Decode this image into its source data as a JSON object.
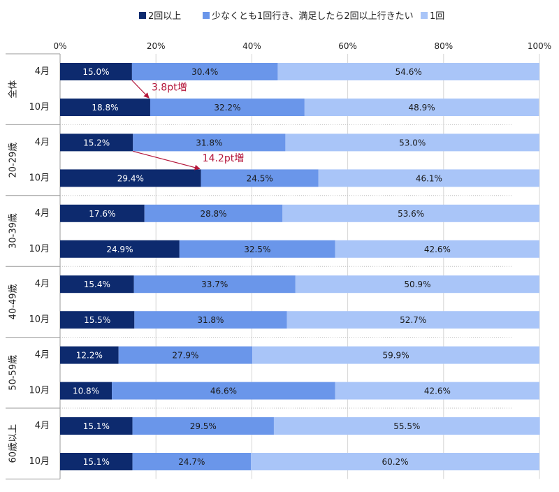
{
  "chart_data": {
    "type": "bar",
    "orientation": "horizontal",
    "stacked": true,
    "x_ticks": [
      "0%",
      "20%",
      "40%",
      "60%",
      "80%",
      "100%"
    ],
    "xlim": [
      0,
      100
    ],
    "legend_position": "top",
    "series": [
      {
        "name": "2回以上",
        "color": "#0d2a6e"
      },
      {
        "name": "少なくとも1回行き、満足したら2回以上行きたい",
        "color": "#6a96ea"
      },
      {
        "name": "1回",
        "color": "#a9c5f8"
      }
    ],
    "groups": [
      {
        "label": "全体",
        "rows": [
          {
            "label": "4月",
            "values": [
              15.0,
              30.4,
              54.6
            ],
            "texts": [
              "15.0%",
              "30.4%",
              "54.6%"
            ]
          },
          {
            "label": "10月",
            "values": [
              18.8,
              32.2,
              48.9
            ],
            "texts": [
              "18.8%",
              "32.2%",
              "48.9%"
            ]
          }
        ]
      },
      {
        "label": "20-29歳",
        "rows": [
          {
            "label": "4月",
            "values": [
              15.2,
              31.8,
              53.0
            ],
            "texts": [
              "15.2%",
              "31.8%",
              "53.0%"
            ]
          },
          {
            "label": "10月",
            "values": [
              29.4,
              24.5,
              46.1
            ],
            "texts": [
              "29.4%",
              "24.5%",
              "46.1%"
            ]
          }
        ]
      },
      {
        "label": "30-39歳",
        "rows": [
          {
            "label": "4月",
            "values": [
              17.6,
              28.8,
              53.6
            ],
            "texts": [
              "17.6%",
              "28.8%",
              "53.6%"
            ]
          },
          {
            "label": "10月",
            "values": [
              24.9,
              32.5,
              42.6
            ],
            "texts": [
              "24.9%",
              "32.5%",
              "42.6%"
            ]
          }
        ]
      },
      {
        "label": "40-49歳",
        "rows": [
          {
            "label": "4月",
            "values": [
              15.4,
              33.7,
              50.9
            ],
            "texts": [
              "15.4%",
              "33.7%",
              "50.9%"
            ]
          },
          {
            "label": "10月",
            "values": [
              15.5,
              31.8,
              52.7
            ],
            "texts": [
              "15.5%",
              "31.8%",
              "52.7%"
            ]
          }
        ]
      },
      {
        "label": "50-59歳",
        "rows": [
          {
            "label": "4月",
            "values": [
              12.2,
              27.9,
              59.9
            ],
            "texts": [
              "12.2%",
              "27.9%",
              "59.9%"
            ]
          },
          {
            "label": "10月",
            "values": [
              10.8,
              46.6,
              42.6
            ],
            "texts": [
              "10.8%",
              "46.6%",
              "42.6%"
            ]
          }
        ]
      },
      {
        "label": "60歳以上",
        "rows": [
          {
            "label": "4月",
            "values": [
              15.1,
              29.5,
              55.5
            ],
            "texts": [
              "15.1%",
              "29.5%",
              "55.5%"
            ]
          },
          {
            "label": "10月",
            "values": [
              15.1,
              24.7,
              60.2
            ],
            "texts": [
              "15.1%",
              "24.7%",
              "60.2%"
            ]
          }
        ]
      }
    ],
    "annotations": [
      {
        "group": 0,
        "text": "3.8pt増",
        "color": "#b5173b"
      },
      {
        "group": 1,
        "text": "14.2pt増",
        "color": "#b5173b"
      }
    ]
  }
}
